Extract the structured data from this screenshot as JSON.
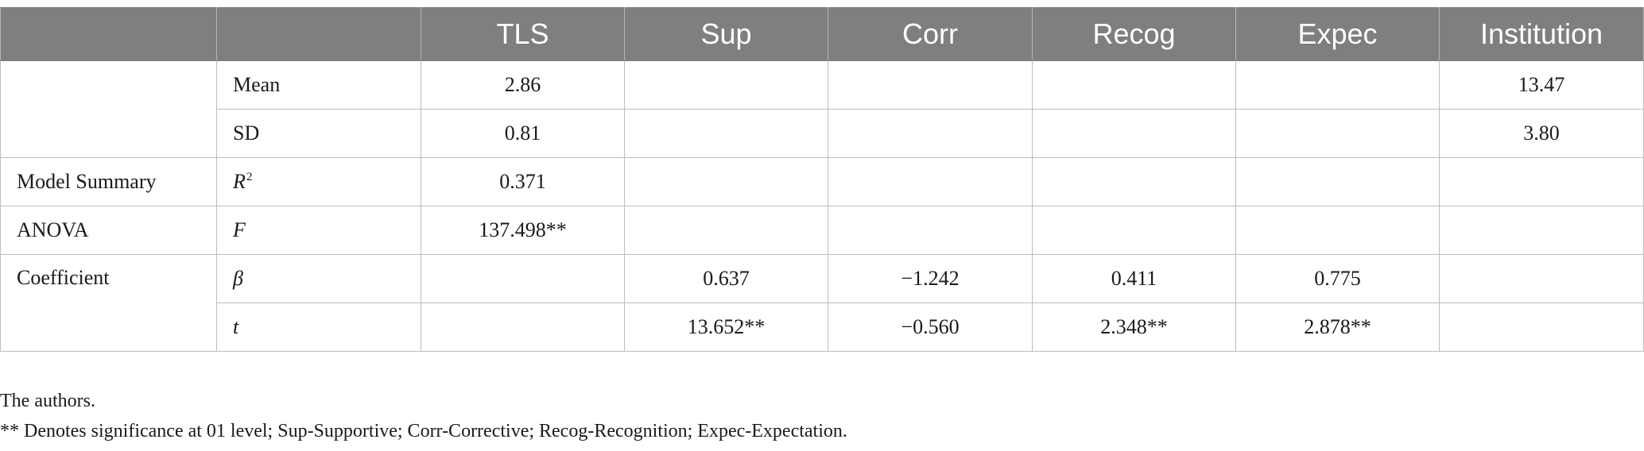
{
  "table": {
    "columns": [
      "",
      "",
      "TLS",
      "Sup",
      "Corr",
      "Recog",
      "Expec",
      "Institution"
    ],
    "rows": [
      {
        "group": "",
        "stat": "Mean",
        "italic": false,
        "values": [
          "2.86",
          "",
          "",
          "",
          "",
          "13.47"
        ]
      },
      {
        "group": "",
        "stat": "SD",
        "italic": false,
        "values": [
          "0.81",
          "",
          "",
          "",
          "",
          "3.80"
        ]
      },
      {
        "group": "Model Summary",
        "stat": "R",
        "stat_sup": "2",
        "italic": true,
        "values": [
          "0.371",
          "",
          "",
          "",
          "",
          ""
        ]
      },
      {
        "group": "ANOVA",
        "stat": "F",
        "italic": true,
        "values": [
          "137.498**",
          "",
          "",
          "",
          "",
          ""
        ]
      },
      {
        "group": "Coefficient",
        "stat": "β",
        "italic": true,
        "values": [
          "",
          "0.637",
          "−1.242",
          "0.411",
          "0.775",
          ""
        ]
      },
      {
        "group": "",
        "stat": "t",
        "italic": true,
        "values": [
          "",
          "13.652**",
          "−0.560",
          "2.348**",
          "2.878**",
          ""
        ]
      }
    ]
  },
  "notes": {
    "source": "The authors.",
    "footnote": "** Denotes significance at 01 level; Sup-Supportive; Corr-Corrective; Recog-Recognition; Expec-Expectation."
  }
}
